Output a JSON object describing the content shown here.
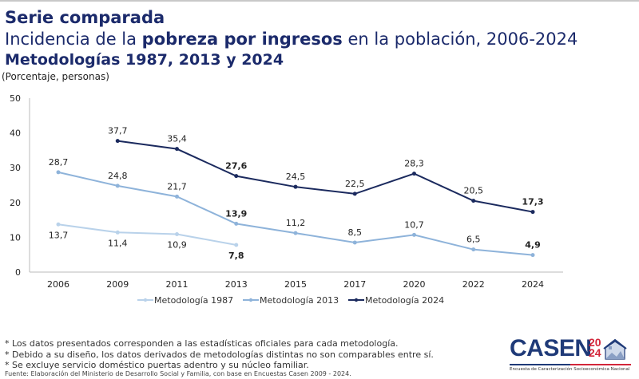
{
  "header": {
    "title": "Serie comparada",
    "subtitle_pre": "Incidencia de la ",
    "subtitle_bold": "pobreza por ingresos",
    "subtitle_post": " en la población, 2006-2024",
    "methodologies": "Metodologías 1987, 2013 y 2024",
    "unit": "(Porcentaje, personas)"
  },
  "chart_data": {
    "type": "line",
    "categories": [
      "2006",
      "2009",
      "2011",
      "2013",
      "2015",
      "2017",
      "2020",
      "2022",
      "2024"
    ],
    "ylim": [
      0,
      50
    ],
    "yticks": [
      0,
      10,
      20,
      30,
      40,
      50
    ],
    "grid": false,
    "legend": "bottom",
    "series": [
      {
        "name": "Metodología 1987",
        "color": "#b9d2ea",
        "values": [
          13.7,
          11.4,
          10.9,
          7.8,
          null,
          null,
          null,
          null,
          null
        ],
        "labels": [
          "13,7",
          "11,4",
          "10,9",
          "7,8",
          null,
          null,
          null,
          null,
          null
        ],
        "bold": [
          false,
          false,
          false,
          true
        ],
        "label_pos": "below"
      },
      {
        "name": "Metodología 2013",
        "color": "#8eb3da",
        "values": [
          28.7,
          24.8,
          21.7,
          13.9,
          11.2,
          8.5,
          10.7,
          6.5,
          4.9
        ],
        "labels": [
          "28,7",
          "24,8",
          "21,7",
          "13,9",
          "11,2",
          "8,5",
          "10,7",
          "6,5",
          "4,9"
        ],
        "bold": [
          false,
          false,
          false,
          true,
          false,
          false,
          false,
          false,
          true
        ],
        "label_pos": "above"
      },
      {
        "name": "Metodología 2024",
        "color": "#1b2a5e",
        "values": [
          null,
          37.7,
          35.4,
          27.6,
          24.5,
          22.5,
          28.3,
          20.5,
          17.3
        ],
        "labels": [
          null,
          "37,7",
          "35,4",
          "27,6",
          "24,5",
          "22,5",
          "28,3",
          "20,5",
          "17,3"
        ],
        "bold": [
          false,
          false,
          false,
          true,
          false,
          false,
          false,
          false,
          true
        ],
        "label_pos": "above"
      }
    ]
  },
  "notes": [
    "* Los datos presentados corresponden a las estadísticas oficiales para cada metodología.",
    "* Debido a su diseño, los datos derivados de metodologías distintas no son comparables entre sí.",
    "* Se excluye servicio doméstico puertas adentro y su núcleo familiar."
  ],
  "source": "Fuente: Elaboración del Ministerio de Desarrollo Social y Familia, con base en Encuestas Casen 2009 - 2024.",
  "logo": {
    "text": "CASEN",
    "year_top": "20",
    "year_bottom": "24",
    "tagline": "Encuesta de Caracterización Socioeconómica Nacional"
  }
}
